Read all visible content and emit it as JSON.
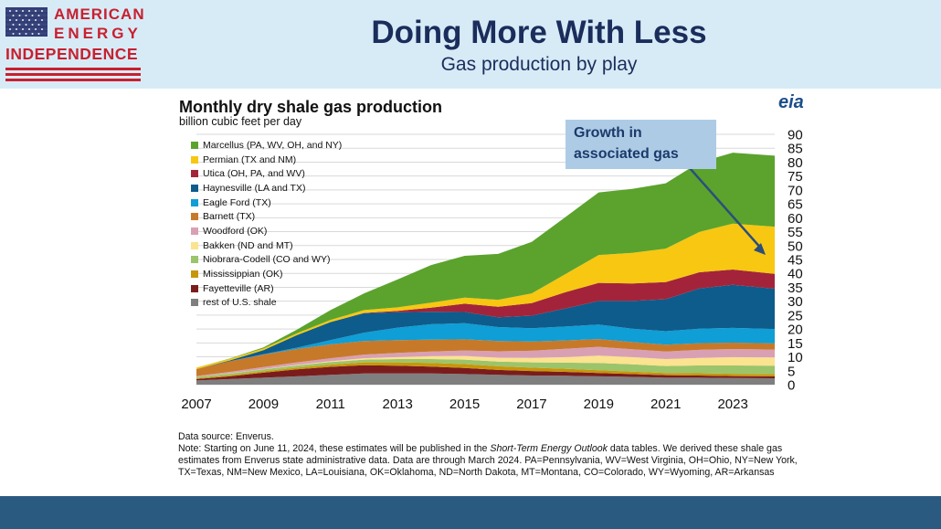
{
  "header": {
    "title": "Doing More With Less",
    "subtitle": "Gas production by play",
    "logo_line1": "AMERICAN",
    "logo_line2": "ENERGY",
    "logo_line3": "INDEPENDENCE"
  },
  "colors": {
    "header_bg": "#d7ebf7",
    "footer_bg": "#2b5a80",
    "title": "#1b2d5b",
    "logo_red": "#c8202f"
  },
  "chart": {
    "title": "Monthly dry shale gas production",
    "unit": "billion cubic feet per day",
    "logo": "eia",
    "callout_line1": "Growth in",
    "callout_line2": "associated gas"
  },
  "notes": {
    "source": "Data source: Enverus.",
    "note_pre": "Note: Starting on June 11, 2024, these estimates will be published in the ",
    "note_italic": "Short-Term Energy Outlook",
    "note_post": " data tables. We derived these shale gas estimates from Enverus state administrative data. Data are through March 2024. PA=Pennsylvania, WV=West Virginia, OH=Ohio, NY=New York, TX=Texas, NM=New Mexico, LA=Louisiana, OK=Oklahoma, ND=North Dakota, MT=Montana, CO=Colorado, WY=Wyoming, AR=Arkansas"
  },
  "chart_data": {
    "type": "area",
    "stacked": true,
    "title": "Monthly dry shale gas production",
    "ylabel": "billion cubic feet per day",
    "ylim": [
      0,
      90
    ],
    "yticks": [
      0,
      5,
      10,
      15,
      20,
      25,
      30,
      35,
      40,
      45,
      50,
      55,
      60,
      65,
      70,
      75,
      80,
      85,
      90
    ],
    "xlim": [
      2007,
      2024.25
    ],
    "xticks": [
      2007,
      2009,
      2011,
      2013,
      2015,
      2017,
      2019,
      2021,
      2023
    ],
    "grid": true,
    "legend_position": "top-left",
    "x": [
      2007,
      2008,
      2009,
      2010,
      2011,
      2012,
      2013,
      2014,
      2015,
      2016,
      2017,
      2018,
      2019,
      2020,
      2021,
      2022,
      2023,
      2024.25
    ],
    "series": [
      {
        "name": "rest of U.S. shale",
        "color": "#7f7f7f",
        "values": [
          1.5,
          2.0,
          2.5,
          3.0,
          3.5,
          4.0,
          4.0,
          4.0,
          3.8,
          3.5,
          3.3,
          3.2,
          3.0,
          2.8,
          2.5,
          2.5,
          2.4,
          2.3
        ]
      },
      {
        "name": "Fayetteville (AR)",
        "color": "#7b1c1c",
        "values": [
          0.5,
          1.0,
          1.8,
          2.5,
          2.9,
          3.0,
          2.8,
          2.5,
          2.2,
          1.8,
          1.6,
          1.4,
          1.2,
          1.0,
          0.9,
          0.8,
          0.7,
          0.7
        ]
      },
      {
        "name": "Mississippian (OK)",
        "color": "#c8960a",
        "values": [
          0.3,
          0.4,
          0.5,
          0.6,
          0.8,
          1.0,
          1.2,
          1.3,
          1.4,
          1.3,
          1.2,
          1.1,
          1.0,
          0.9,
          0.8,
          0.8,
          0.8,
          0.8
        ]
      },
      {
        "name": "Niobrara-Codell (CO and WY)",
        "color": "#9cc46a",
        "values": [
          0.5,
          0.6,
          0.7,
          0.8,
          0.9,
          1.0,
          1.2,
          1.4,
          1.6,
          1.7,
          1.9,
          2.2,
          2.6,
          2.6,
          2.5,
          2.8,
          3.0,
          3.0
        ]
      },
      {
        "name": "Bakken (ND and MT)",
        "color": "#fbe38f",
        "values": [
          0.0,
          0.1,
          0.1,
          0.2,
          0.3,
          0.5,
          0.7,
          1.0,
          1.3,
          1.4,
          1.6,
          2.0,
          2.6,
          2.6,
          2.5,
          2.7,
          3.0,
          3.0
        ]
      },
      {
        "name": "Woodford (OK)",
        "color": "#d9a0b4",
        "values": [
          0.3,
          0.5,
          0.7,
          0.9,
          1.1,
          1.3,
          1.5,
          1.7,
          2.0,
          2.3,
          2.6,
          3.0,
          3.2,
          2.8,
          2.7,
          2.9,
          2.9,
          2.8
        ]
      },
      {
        "name": "Barnett (TX)",
        "color": "#c7792a",
        "values": [
          2.5,
          3.8,
          4.5,
          4.8,
          5.0,
          4.9,
          4.6,
          4.3,
          4.0,
          3.7,
          3.3,
          3.0,
          2.8,
          2.6,
          2.5,
          2.4,
          2.3,
          2.2
        ]
      },
      {
        "name": "Eagle Ford (TX)",
        "color": "#0f9ed5",
        "values": [
          0.0,
          0.0,
          0.1,
          0.5,
          1.5,
          3.0,
          4.5,
          5.5,
          5.8,
          5.0,
          4.8,
          5.0,
          5.2,
          4.8,
          4.8,
          5.2,
          5.3,
          5.2
        ]
      },
      {
        "name": "Haynesville (LA and TX)",
        "color": "#0e5c8c",
        "values": [
          0.0,
          0.3,
          1.5,
          4.5,
          6.5,
          7.0,
          5.5,
          4.5,
          4.0,
          3.5,
          4.5,
          6.5,
          8.5,
          10.0,
          11.5,
          14.5,
          15.5,
          14.5
        ]
      },
      {
        "name": "Utica (OH, PA, and WV)",
        "color": "#a3243a",
        "values": [
          0.0,
          0.0,
          0.0,
          0.0,
          0.0,
          0.1,
          0.5,
          1.5,
          3.0,
          3.8,
          4.5,
          5.8,
          6.5,
          6.3,
          6.2,
          5.8,
          5.5,
          5.3
        ]
      },
      {
        "name": "Permian (TX and NM)",
        "color": "#f7c712",
        "values": [
          0.5,
          0.6,
          0.6,
          0.7,
          0.8,
          1.0,
          1.3,
          1.8,
          2.2,
          2.5,
          3.5,
          6.5,
          10.0,
          11.0,
          12.0,
          14.5,
          16.5,
          17.0
        ]
      },
      {
        "name": "Marcellus (PA, WV, OH, and NY)",
        "color": "#5ba32d",
        "values": [
          0.0,
          0.1,
          0.4,
          1.3,
          3.5,
          6.0,
          10.0,
          13.5,
          15.0,
          16.5,
          18.5,
          20.5,
          22.5,
          23.0,
          23.5,
          25.0,
          25.5,
          25.5
        ]
      }
    ]
  }
}
